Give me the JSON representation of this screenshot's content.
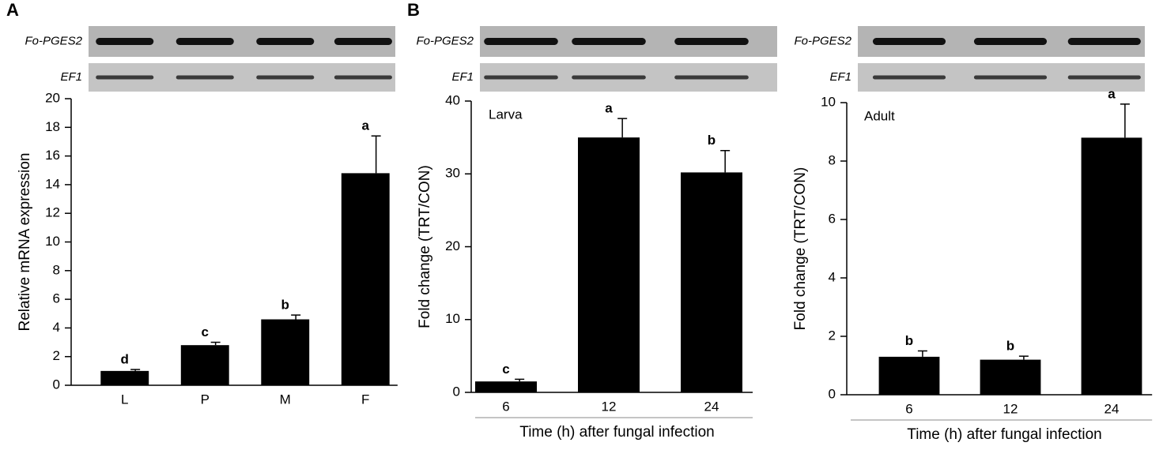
{
  "chart_data": [
    {
      "type": "bar",
      "panel": "A",
      "gel_labels": [
        "Fo-PGES2",
        "EF1"
      ],
      "y_label": "Relative mRNA expression",
      "categories": [
        "L",
        "P",
        "M",
        "F"
      ],
      "values": [
        1.0,
        2.8,
        4.6,
        14.8
      ],
      "errors": [
        0.1,
        0.2,
        0.3,
        2.6
      ],
      "letters": [
        "d",
        "c",
        "b",
        "a"
      ],
      "color": "#000000",
      "ylim": [
        0,
        20
      ],
      "yticks": [
        0,
        2,
        4,
        6,
        8,
        10,
        12,
        14,
        16,
        18,
        20
      ]
    },
    {
      "type": "bar",
      "panel": "B",
      "gel_labels": [
        "Fo-PGES2",
        "EF1"
      ],
      "annotation": "Larva",
      "y_label": "Fold change (TRT/CON)",
      "x_label": "Time (h) after fungal infection",
      "categories": [
        "6",
        "12",
        "24"
      ],
      "values": [
        1.5,
        35.0,
        30.2
      ],
      "errors": [
        0.3,
        2.6,
        3.0
      ],
      "letters": [
        "c",
        "a",
        "b"
      ],
      "color": "#000000",
      "ylim": [
        0,
        40
      ],
      "yticks": [
        0,
        10,
        20,
        30,
        40
      ]
    },
    {
      "type": "bar",
      "gel_labels": [
        "Fo-PGES2",
        "EF1"
      ],
      "annotation": "Adult",
      "y_label": "Fold change (TRT/CON)",
      "x_label": "Time (h) after fungal infection",
      "categories": [
        "6",
        "12",
        "24"
      ],
      "values": [
        1.3,
        1.2,
        8.8
      ],
      "errors": [
        0.2,
        0.12,
        1.15
      ],
      "letters": [
        "b",
        "b",
        "a"
      ],
      "color": "#000000",
      "ylim": [
        0,
        10
      ],
      "yticks": [
        0,
        2,
        4,
        6,
        8,
        10
      ]
    }
  ]
}
